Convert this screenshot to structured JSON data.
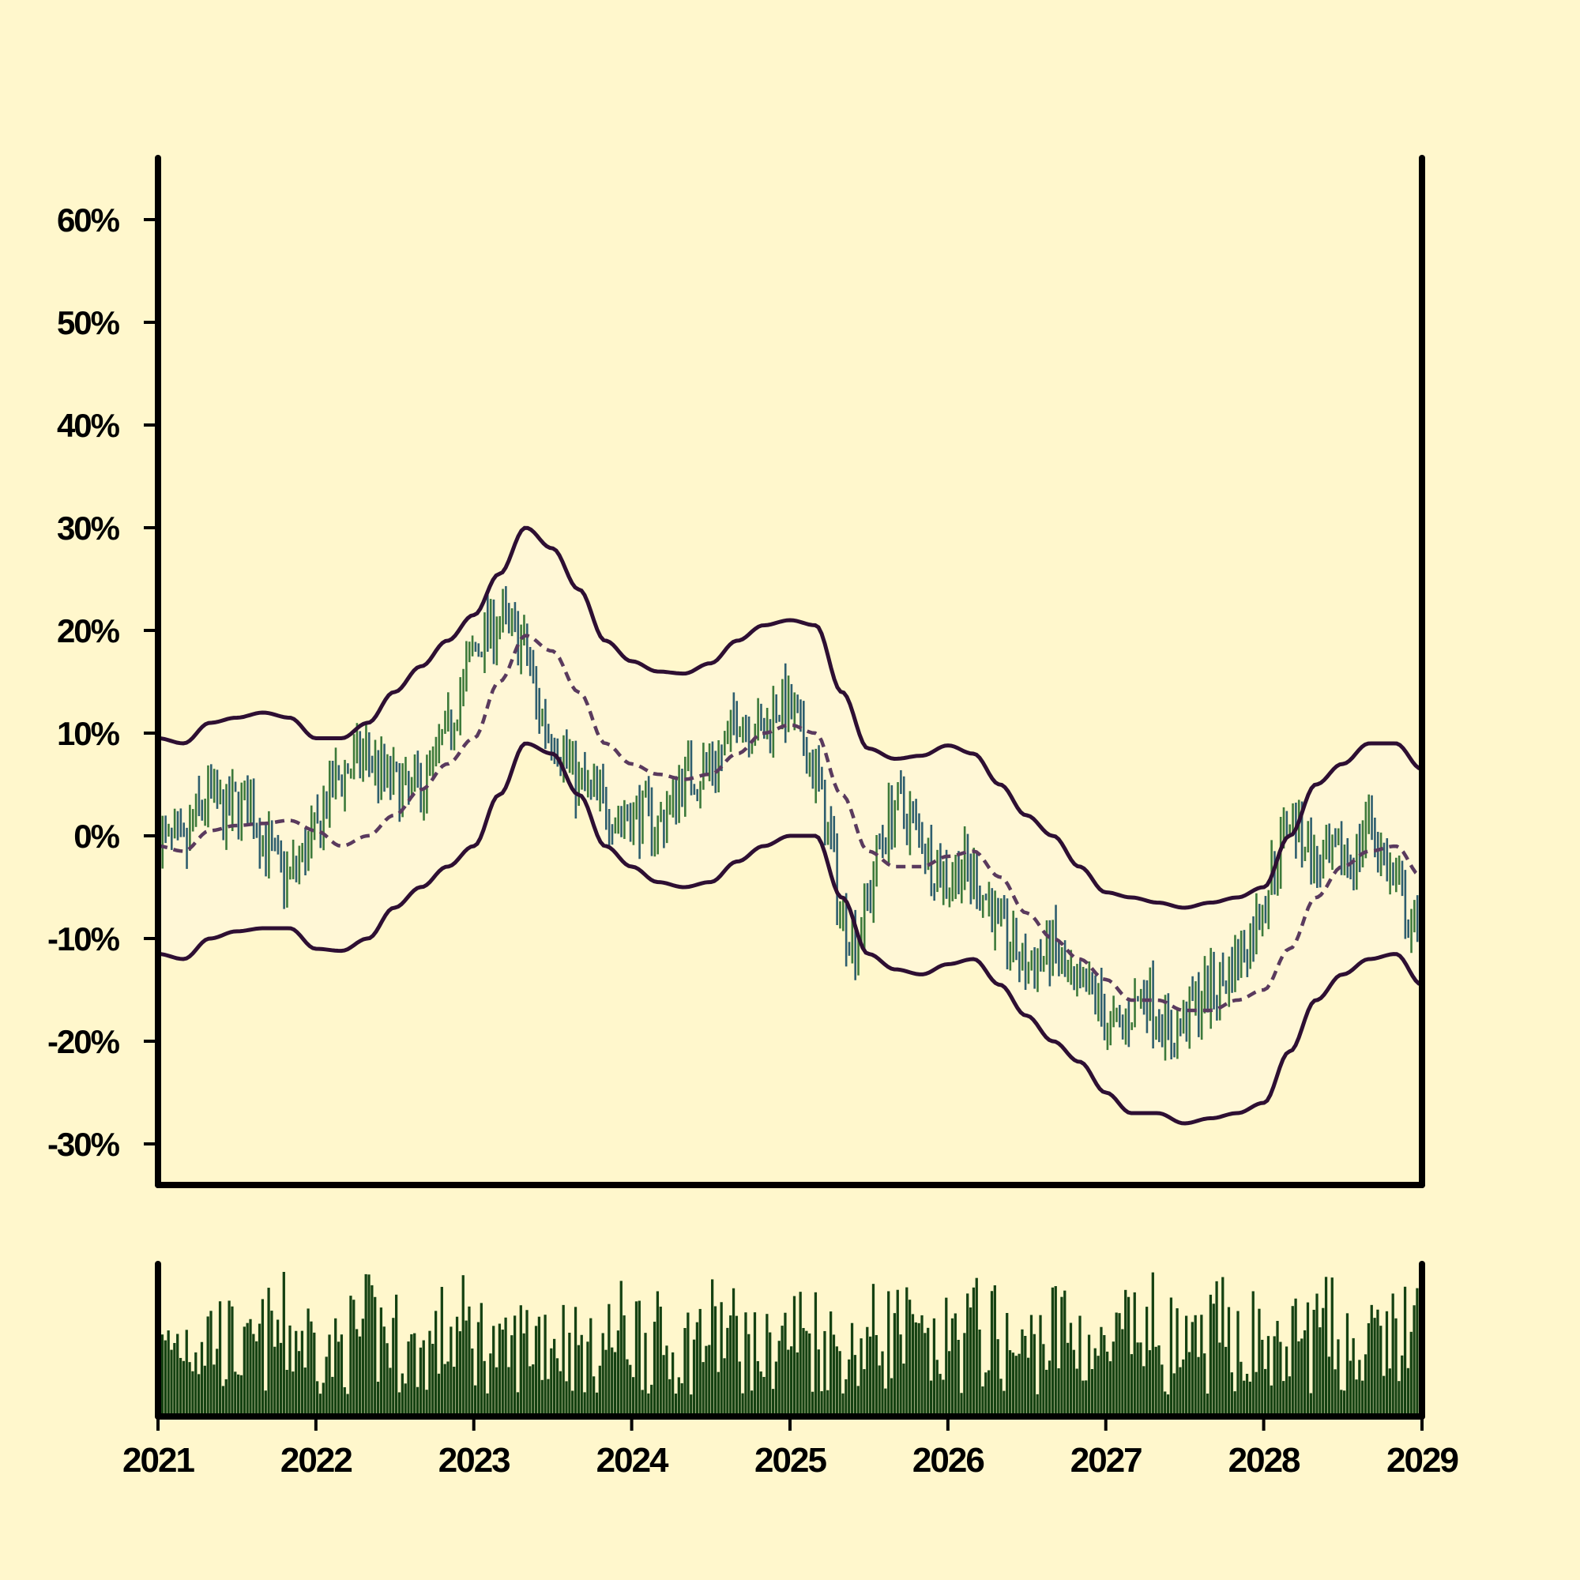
{
  "chart_data": {
    "type": "ohlc",
    "background": "#fff7cc",
    "colors": {
      "up": "#3d7a3a",
      "down": "#2e5e6e",
      "band": "#2e0f33",
      "band_fill": "#fff7d6",
      "mid": "#5a3a5e",
      "volume": "#154212",
      "axis": "#000000"
    },
    "price_axis": {
      "ylim": [
        -0.34,
        0.66
      ],
      "ticks": [
        -0.3,
        -0.2,
        -0.1,
        0.0,
        0.1,
        0.2,
        0.3,
        0.4,
        0.5,
        0.6
      ],
      "tick_labels": [
        "-30%",
        "-20%",
        "-10%",
        "0%",
        "10%",
        "20%",
        "30%",
        "40%",
        "50%",
        "60%"
      ]
    },
    "x_axis": {
      "range": [
        "2021-01-01",
        "2029-01-01"
      ],
      "ticks": [
        "2021-01-01",
        "2022-01-01",
        "2023-01-01",
        "2024-01-01",
        "2025-01-01",
        "2026-01-01",
        "2027-01-01",
        "2028-01-01",
        "2029-01-01"
      ],
      "tick_labels": [
        "2021",
        "2022",
        "2023",
        "2024",
        "2025",
        "2026",
        "2027",
        "2028",
        "2029"
      ]
    },
    "bands": {
      "note": "Upper / middle / lower envelope, values in percent return",
      "dates": [
        "2021-01-01",
        "2021-03-01",
        "2021-05-01",
        "2021-07-01",
        "2021-09-01",
        "2021-11-01",
        "2022-01-01",
        "2022-03-01",
        "2022-05-01",
        "2022-07-01",
        "2022-09-01",
        "2022-11-01",
        "2023-01-01",
        "2023-03-01",
        "2023-05-01",
        "2023-07-01",
        "2023-09-01",
        "2023-11-01",
        "2024-01-01",
        "2024-03-01",
        "2024-05-01",
        "2024-07-01",
        "2024-09-01",
        "2024-11-01",
        "2025-01-01",
        "2025-03-01",
        "2025-05-01",
        "2025-07-01",
        "2025-09-01",
        "2025-11-01",
        "2026-01-01",
        "2026-03-01",
        "2026-05-01",
        "2026-07-01",
        "2026-09-01",
        "2026-11-01",
        "2027-01-01",
        "2027-03-01",
        "2027-05-01",
        "2027-07-01",
        "2027-09-01",
        "2027-11-01",
        "2028-01-01",
        "2028-03-01",
        "2028-05-01",
        "2028-07-01",
        "2028-09-01",
        "2028-11-01",
        "2029-01-01"
      ],
      "middle": [
        -0.01,
        -0.015,
        0.005,
        0.01,
        0.012,
        0.015,
        0.005,
        -0.01,
        0.0,
        0.02,
        0.045,
        0.07,
        0.095,
        0.15,
        0.195,
        0.18,
        0.14,
        0.09,
        0.07,
        0.06,
        0.055,
        0.06,
        0.08,
        0.1,
        0.108,
        0.1,
        0.04,
        -0.015,
        -0.03,
        -0.03,
        -0.02,
        -0.015,
        -0.04,
        -0.075,
        -0.1,
        -0.12,
        -0.14,
        -0.16,
        -0.16,
        -0.17,
        -0.17,
        -0.16,
        -0.15,
        -0.11,
        -0.06,
        -0.03,
        -0.015,
        -0.01,
        -0.04
      ],
      "upper": [
        0.095,
        0.09,
        0.11,
        0.115,
        0.12,
        0.115,
        0.095,
        0.095,
        0.11,
        0.14,
        0.165,
        0.19,
        0.215,
        0.255,
        0.3,
        0.28,
        0.24,
        0.19,
        0.17,
        0.16,
        0.158,
        0.168,
        0.19,
        0.205,
        0.21,
        0.205,
        0.14,
        0.085,
        0.075,
        0.078,
        0.088,
        0.08,
        0.05,
        0.02,
        0.0,
        -0.03,
        -0.055,
        -0.06,
        -0.065,
        -0.07,
        -0.065,
        -0.06,
        -0.05,
        0.0,
        0.05,
        0.07,
        0.09,
        0.09,
        0.065
      ],
      "lower": [
        -0.115,
        -0.12,
        -0.1,
        -0.093,
        -0.09,
        -0.09,
        -0.11,
        -0.112,
        -0.1,
        -0.07,
        -0.05,
        -0.03,
        -0.01,
        0.04,
        0.09,
        0.08,
        0.04,
        -0.01,
        -0.03,
        -0.045,
        -0.05,
        -0.045,
        -0.025,
        -0.01,
        0.0,
        0.0,
        -0.06,
        -0.115,
        -0.13,
        -0.135,
        -0.125,
        -0.12,
        -0.145,
        -0.175,
        -0.2,
        -0.22,
        -0.25,
        -0.27,
        -0.27,
        -0.28,
        -0.275,
        -0.27,
        -0.26,
        -0.21,
        -0.16,
        -0.135,
        -0.12,
        -0.115,
        -0.145
      ]
    },
    "bars": {
      "note": "Weekly OHLC bars; close path sampled by month (percent return) and volume per week relative to panel max",
      "close_path_dates": [
        "2021-01-01",
        "2021-02-01",
        "2021-03-01",
        "2021-04-01",
        "2021-05-01",
        "2021-06-01",
        "2021-07-01",
        "2021-08-01",
        "2021-09-01",
        "2021-10-01",
        "2021-11-01",
        "2021-12-01",
        "2022-01-01",
        "2022-02-01",
        "2022-03-01",
        "2022-04-01",
        "2022-05-01",
        "2022-06-01",
        "2022-07-01",
        "2022-08-01",
        "2022-09-01",
        "2022-10-01",
        "2022-11-01",
        "2022-12-01",
        "2023-01-01",
        "2023-02-01",
        "2023-03-01",
        "2023-04-01",
        "2023-05-01",
        "2023-06-01",
        "2023-07-01",
        "2023-08-01",
        "2023-09-01",
        "2023-10-01",
        "2023-11-01",
        "2023-12-01",
        "2024-01-01",
        "2024-02-01",
        "2024-03-01",
        "2024-04-01",
        "2024-05-01",
        "2024-06-01",
        "2024-07-01",
        "2024-08-01",
        "2024-09-01",
        "2024-10-01",
        "2024-11-01",
        "2024-12-01",
        "2025-01-01",
        "2025-02-01",
        "2025-03-01",
        "2025-04-01",
        "2025-05-01",
        "2025-06-01",
        "2025-07-01",
        "2025-08-01",
        "2025-09-01",
        "2025-10-01",
        "2025-11-01",
        "2025-12-01",
        "2026-01-01",
        "2026-02-01",
        "2026-03-01",
        "2026-04-01",
        "2026-05-01",
        "2026-06-01",
        "2026-07-01",
        "2026-08-01",
        "2026-09-01",
        "2026-10-01",
        "2026-11-01",
        "2026-12-01",
        "2027-01-01",
        "2027-02-01",
        "2027-03-01",
        "2027-04-01",
        "2027-05-01",
        "2027-06-01",
        "2027-07-01",
        "2027-08-01",
        "2027-09-01",
        "2027-10-01",
        "2027-11-01",
        "2027-12-01",
        "2028-01-01",
        "2028-02-01",
        "2028-03-01",
        "2028-04-01",
        "2028-05-01",
        "2028-06-01",
        "2028-07-01",
        "2028-08-01",
        "2028-09-01",
        "2028-10-01",
        "2028-11-01",
        "2028-12-01",
        "2029-01-01"
      ],
      "close_path": [
        0.0,
        -0.01,
        -0.015,
        0.02,
        0.04,
        0.02,
        0.03,
        0.03,
        0.0,
        -0.03,
        -0.04,
        -0.02,
        0.0,
        0.04,
        0.06,
        0.07,
        0.08,
        0.06,
        0.05,
        0.04,
        0.05,
        0.07,
        0.1,
        0.14,
        0.18,
        0.2,
        0.21,
        0.2,
        0.18,
        0.12,
        0.1,
        0.08,
        0.05,
        0.04,
        0.03,
        0.02,
        0.02,
        0.02,
        0.01,
        0.03,
        0.06,
        0.06,
        0.07,
        0.08,
        0.12,
        0.11,
        0.1,
        0.13,
        0.12,
        0.09,
        0.06,
        0.0,
        -0.08,
        -0.1,
        -0.06,
        0.0,
        0.03,
        0.02,
        0.0,
        -0.03,
        -0.04,
        -0.03,
        -0.04,
        -0.06,
        -0.09,
        -0.11,
        -0.13,
        -0.12,
        -0.11,
        -0.14,
        -0.16,
        -0.15,
        -0.18,
        -0.19,
        -0.17,
        -0.15,
        -0.17,
        -0.2,
        -0.18,
        -0.16,
        -0.15,
        -0.14,
        -0.12,
        -0.1,
        -0.06,
        -0.02,
        0.02,
        0.0,
        -0.03,
        -0.03,
        -0.02,
        -0.02,
        0.02,
        -0.02,
        -0.05,
        -0.08,
        -0.12
      ],
      "weeks": 416,
      "volume_seed": 7
    }
  }
}
